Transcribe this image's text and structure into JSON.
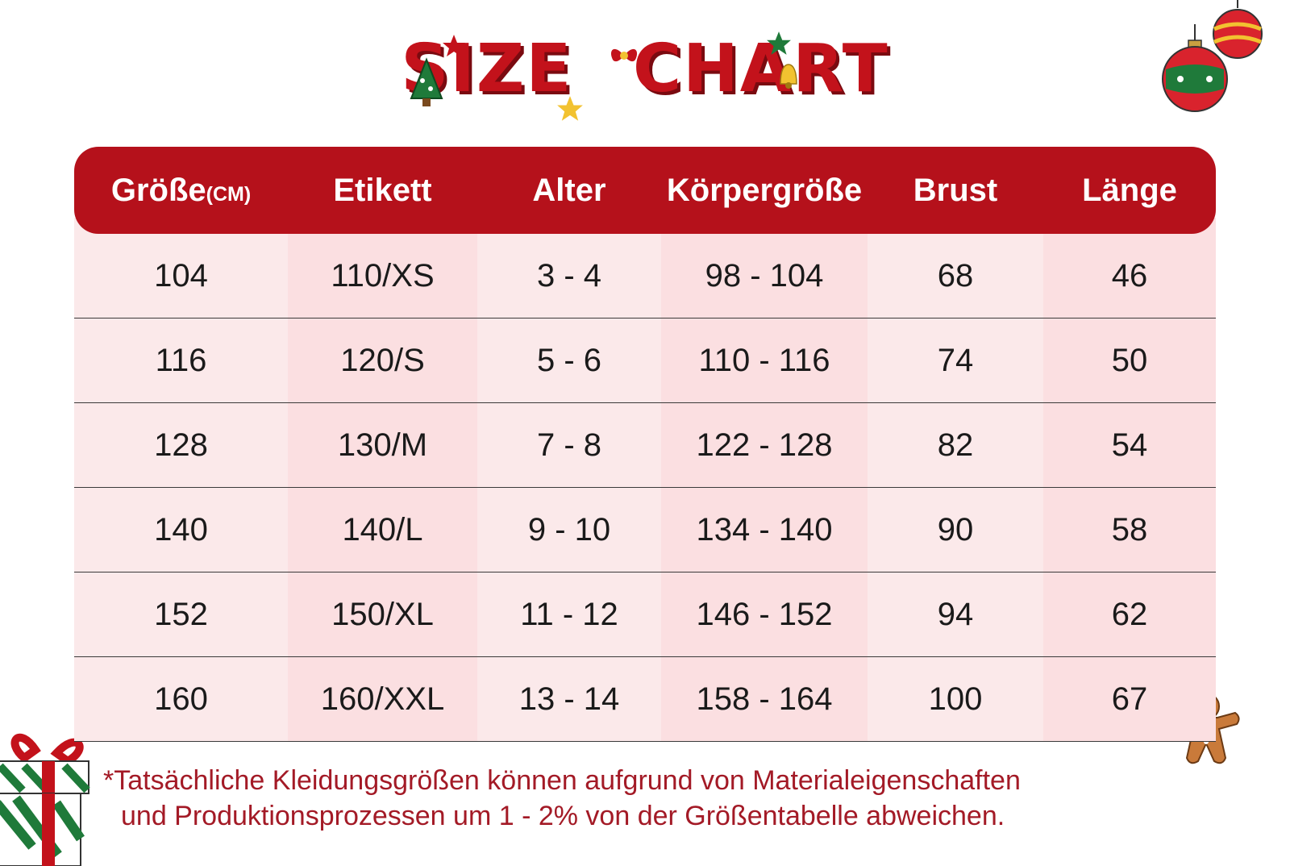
{
  "title": {
    "word1": "SIZE",
    "word2": "CHART"
  },
  "table": {
    "headers": [
      {
        "label": "Größe",
        "unit": "(CM)"
      },
      {
        "label": "Etikett"
      },
      {
        "label": "Alter"
      },
      {
        "label": "Körpergröße"
      },
      {
        "label": "Brust"
      },
      {
        "label": "Länge"
      }
    ],
    "rows": [
      [
        "104",
        "110/XS",
        "3 - 4",
        "98 - 104",
        "68",
        "46"
      ],
      [
        "116",
        "120/S",
        "5 - 6",
        "110 - 116",
        "74",
        "50"
      ],
      [
        "128",
        "130/M",
        "7 - 8",
        "122 - 128",
        "82",
        "54"
      ],
      [
        "140",
        "140/L",
        "9 - 10",
        "134 - 140",
        "90",
        "58"
      ],
      [
        "152",
        "150/XL",
        "11 - 12",
        "146 - 152",
        "94",
        "62"
      ],
      [
        "160",
        "160/XXL",
        "13 - 14",
        "158 - 164",
        "100",
        "67"
      ]
    ]
  },
  "note": {
    "line1": "*Tatsächliche Kleidungsgrößen können aufgrund von Materialeigenschaften",
    "line2": "und Produktionsprozessen um 1 - 2% von der Größentabelle abweichen."
  },
  "decorations": {
    "icons": [
      "christmas-tree-icon",
      "star-icon",
      "bow-icon",
      "bell-icon",
      "ornament-icon",
      "gift-box-icon",
      "gingerbread-man-icon"
    ],
    "colors": {
      "brand_red": "#b5111b",
      "note_red": "#a31a26",
      "row_light": "#fbe9ea",
      "row_dark": "#fbdfe1",
      "green": "#1f7a3a"
    }
  }
}
